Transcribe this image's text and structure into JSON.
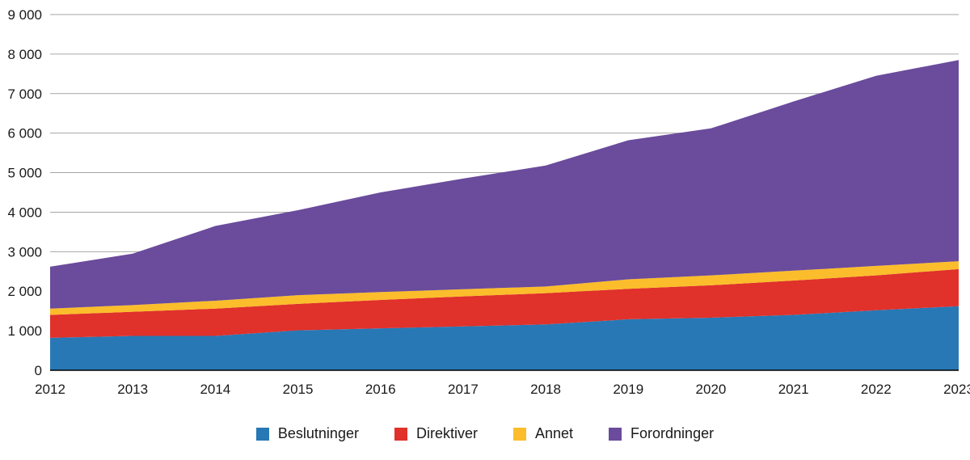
{
  "chart_data": {
    "type": "area",
    "stacked": true,
    "title": "",
    "xlabel": "",
    "ylabel": "",
    "x": [
      2012,
      2013,
      2014,
      2015,
      2016,
      2017,
      2018,
      2019,
      2020,
      2021,
      2022,
      2023
    ],
    "ylim": [
      0,
      9000
    ],
    "ytick_step": 1000,
    "ytick_labels": [
      "0",
      "1 000",
      "2 000",
      "3 000",
      "4 000",
      "5 000",
      "6 000",
      "7 000",
      "8 000",
      "9 000"
    ],
    "grid": true,
    "legend_position": "bottom",
    "series": [
      {
        "name": "Beslutninger",
        "color": "#2878B5",
        "values": [
          820,
          870,
          870,
          1010,
          1060,
          1110,
          1160,
          1290,
          1330,
          1400,
          1520,
          1620
        ]
      },
      {
        "name": "Direktiver",
        "color": "#E0312B",
        "values": [
          580,
          610,
          690,
          670,
          720,
          760,
          790,
          770,
          820,
          870,
          880,
          940
        ]
      },
      {
        "name": "Annet",
        "color": "#FBBD2B",
        "values": [
          160,
          170,
          200,
          220,
          200,
          180,
          170,
          240,
          250,
          250,
          240,
          200
        ]
      },
      {
        "name": "Forordninger",
        "color": "#6A4B9C",
        "values": [
          1060,
          1300,
          1890,
          2150,
          2520,
          2800,
          3060,
          3520,
          3720,
          4280,
          4810,
          5090
        ]
      }
    ],
    "totals": [
      2620,
      2950,
      3650,
      4050,
      4500,
      4850,
      5180,
      5820,
      6120,
      6800,
      7450,
      7850
    ]
  }
}
